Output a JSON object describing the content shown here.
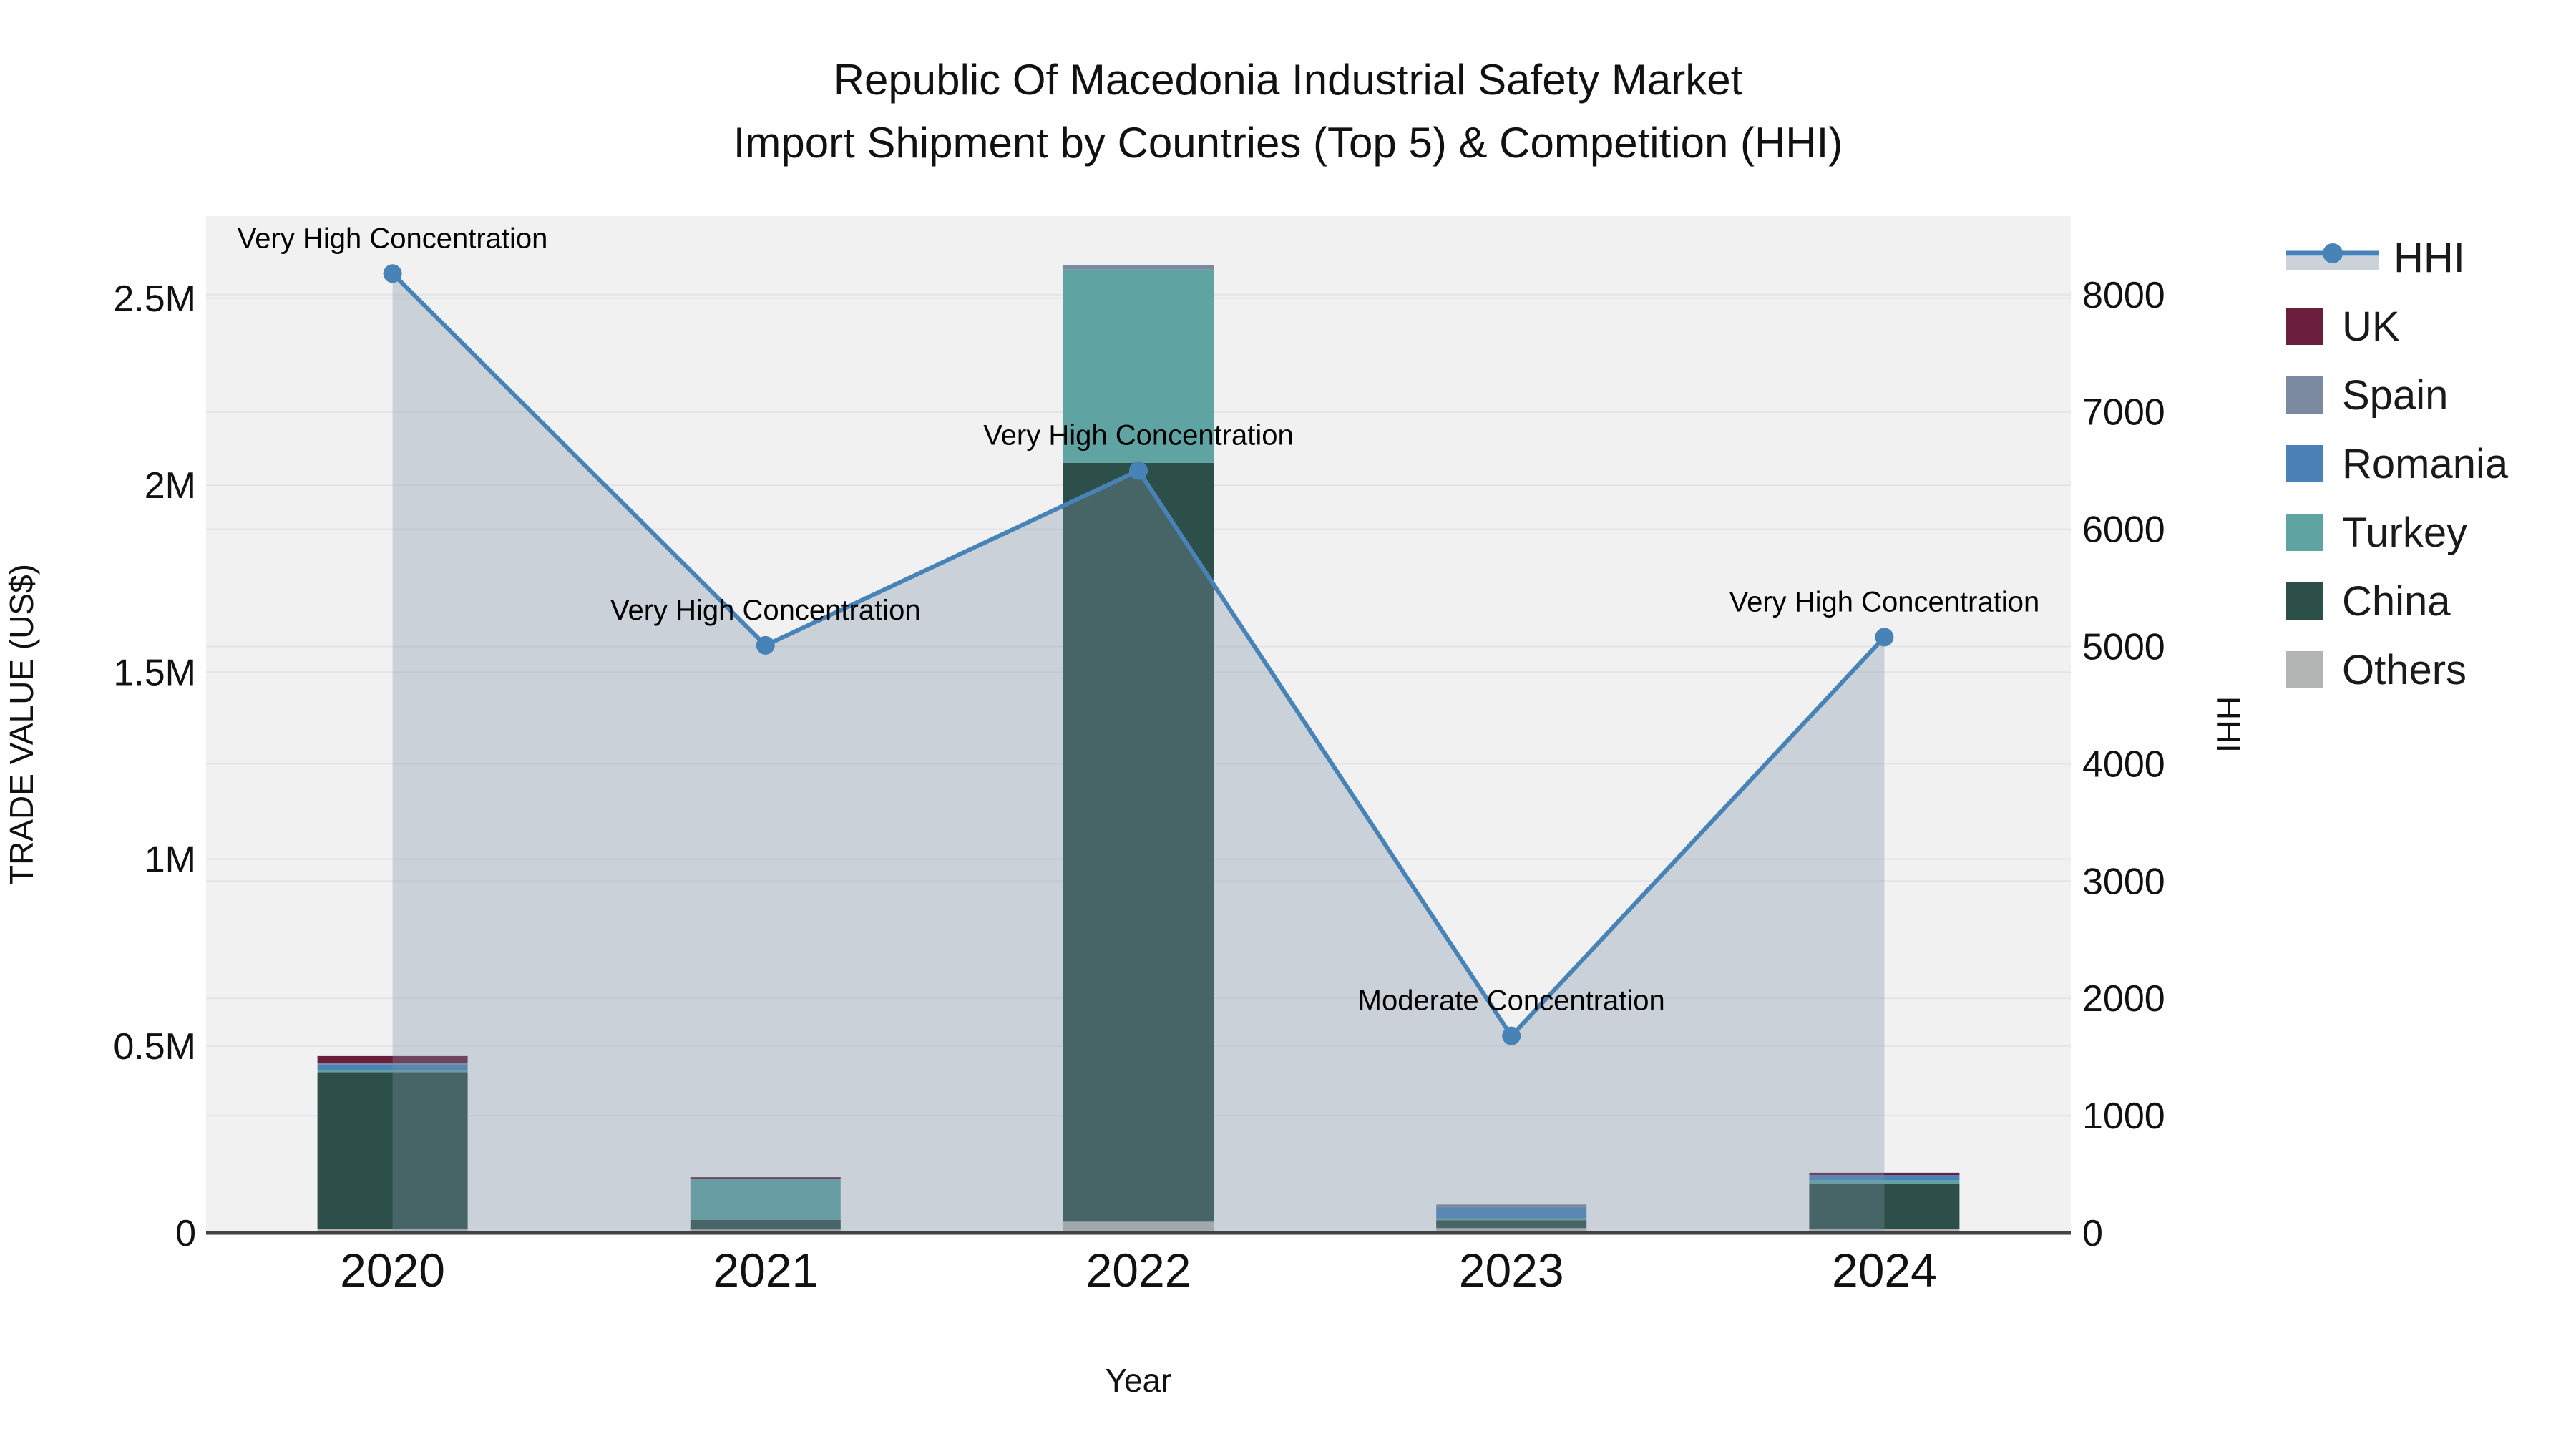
{
  "title": {
    "line1": "Republic Of Macedonia Industrial Safety Market",
    "line2": "Import Shipment by Countries (Top 5) & Competition (HHI)"
  },
  "chart_data": {
    "type": "bar",
    "subtype": "stacked-bars-with-line-area-dual-axis",
    "x": [
      2020,
      2021,
      2022,
      2023,
      2024
    ],
    "x_axis": {
      "title": "Year",
      "labels": [
        "2020",
        "2021",
        "2022",
        "2023",
        "2024"
      ]
    },
    "left_axis": {
      "title": "TRADE VALUE (US$)",
      "ticks": [
        0,
        500000,
        1000000,
        1500000,
        2000000,
        2500000
      ],
      "tick_labels": [
        "0",
        "0.5M",
        "1M",
        "1.5M",
        "2M",
        "2.5M"
      ],
      "max": 2720000
    },
    "right_axis": {
      "title": "HHI",
      "ticks": [
        0,
        1000,
        2000,
        3000,
        4000,
        5000,
        6000,
        7000,
        8000
      ],
      "tick_labels": [
        "0",
        "1000",
        "2000",
        "3000",
        "4000",
        "5000",
        "6000",
        "7000",
        "8000"
      ],
      "max": 8670
    },
    "bar_series": [
      {
        "name": "Others",
        "color": "#b3b5b4",
        "values": [
          10000,
          9000,
          30000,
          13000,
          11000
        ]
      },
      {
        "name": "China",
        "color": "#2d4f4a",
        "values": [
          420000,
          26000,
          2030000,
          21000,
          121000
        ]
      },
      {
        "name": "Turkey",
        "color": "#5fa3a3",
        "values": [
          6000,
          110000,
          517000,
          5000,
          9000
        ]
      },
      {
        "name": "Romania",
        "color": "#4a82b8",
        "values": [
          14000,
          0,
          0,
          29000,
          14000
        ]
      },
      {
        "name": "Spain",
        "color": "#7b8aa0",
        "values": [
          5000,
          0,
          12000,
          8000,
          0
        ]
      },
      {
        "name": "UK",
        "color": "#6b1e3e",
        "values": [
          18000,
          4000,
          0,
          0,
          6000
        ]
      }
    ],
    "line_series": {
      "name": "HHI",
      "color": "#4783b7",
      "area_fill": "rgba(125,145,165,0.33)",
      "values": [
        8180,
        5010,
        6500,
        1680,
        5080
      ]
    },
    "annotations": [
      "Very High Concentration",
      "Very High Concentration",
      "Very High Concentration",
      "Moderate Concentration",
      "Very High Concentration"
    ],
    "legend_order": [
      "HHI",
      "UK",
      "Spain",
      "Romania",
      "Turkey",
      "China",
      "Others"
    ],
    "style": {
      "plot_bg": "#f1f1f2",
      "grid_color": "#e4e4e6",
      "axis_line_color": "#424242",
      "text_color": "#111111"
    }
  }
}
